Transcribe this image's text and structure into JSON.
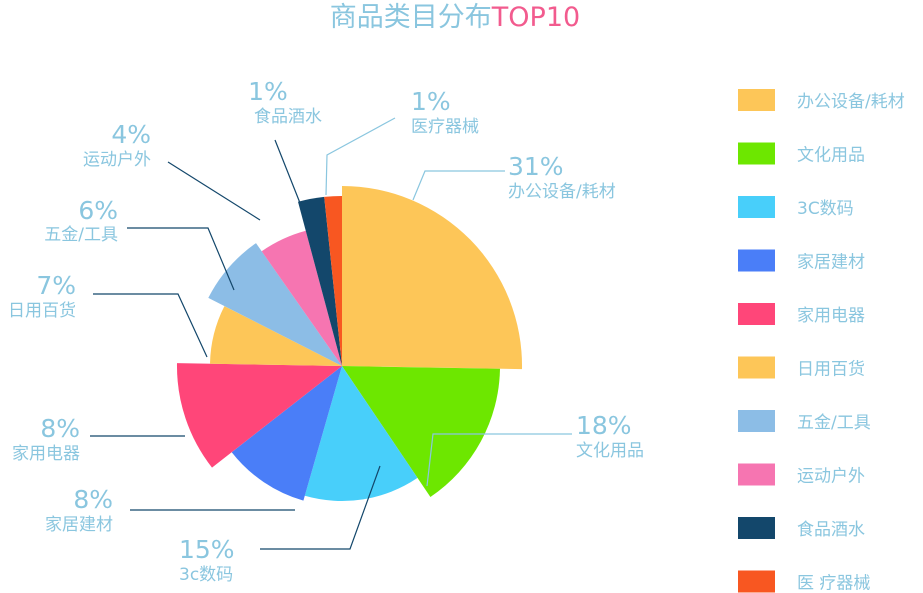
{
  "chart_data": {
    "type": "pie",
    "title": "商品类目分布",
    "title_accent": "TOP10",
    "slices": [
      {
        "pct": "31%",
        "label": "办公设备/耗材",
        "value": 31,
        "color": "#fdc658"
      },
      {
        "pct": "18%",
        "label": "文化用品",
        "value": 18,
        "color": "#6de700"
      },
      {
        "pct": "15%",
        "label": "3c数码",
        "value": 15,
        "color": "#48cffa"
      },
      {
        "pct": "8%",
        "label": "家居建材",
        "value": 8,
        "color": "#4a7ef8"
      },
      {
        "pct": "8%",
        "label": "家用电器",
        "value": 8,
        "color": "#ff4679"
      },
      {
        "pct": "7%",
        "label": "日用百货",
        "value": 7,
        "color": "#fdc658"
      },
      {
        "pct": "6%",
        "label": "五金/工具",
        "value": 6,
        "color": "#8cbde6"
      },
      {
        "pct": "4%",
        "label": "运动户外",
        "value": 4,
        "color": "#f675b1"
      },
      {
        "pct": "1%",
        "label": "食品酒水",
        "value": 1,
        "color": "#13476b"
      },
      {
        "pct": "1%",
        "label": "医疗器械",
        "value": 1,
        "color": "#f85721"
      }
    ],
    "legend": {
      "placement": "right",
      "items": [
        {
          "label": "办公设备/耗材",
          "color": "#fdc658"
        },
        {
          "label": "文化用品",
          "color": "#6de700"
        },
        {
          "label": "3C数码",
          "color": "#48cffa"
        },
        {
          "label": "家居建材",
          "color": "#4a7ef8"
        },
        {
          "label": "家用电器",
          "color": "#ff4679"
        },
        {
          "label": "日用百货",
          "color": "#fdc658"
        },
        {
          "label": "五金/工具",
          "color": "#8cbde6"
        },
        {
          "label": "运动户外",
          "color": "#f675b1"
        },
        {
          "label": "食品酒水",
          "color": "#13476b"
        },
        {
          "label": "医 疗器械",
          "color": "#f85721"
        }
      ]
    }
  }
}
